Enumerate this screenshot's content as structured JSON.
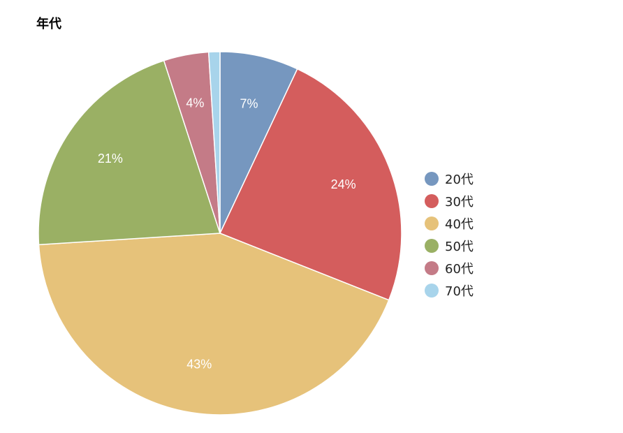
{
  "chart_data": {
    "type": "pie",
    "title": "年代",
    "categories": [
      "20代",
      "30代",
      "40代",
      "50代",
      "60代",
      "70代"
    ],
    "values": [
      7,
      24,
      43,
      21,
      4,
      1
    ],
    "data_labels": [
      "7%",
      "24%",
      "43%",
      "21%",
      "4%",
      ""
    ],
    "colors": [
      "#7697bf",
      "#d45d5d",
      "#e6c27a",
      "#9ab064",
      "#c47b87",
      "#a8d4eb"
    ],
    "legend_position": "right",
    "start_angle": "top, clockwise"
  }
}
